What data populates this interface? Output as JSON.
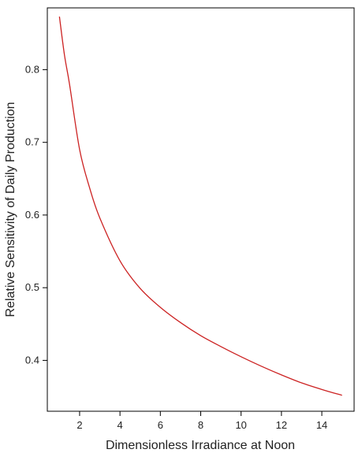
{
  "chart_data": {
    "type": "line",
    "title": "",
    "xlabel": "Dimensionless Irradiance at Noon",
    "ylabel": "Relative Sensitivity of Daily Production",
    "xlim": [
      0.4,
      15.6
    ],
    "ylim": [
      0.33,
      0.885
    ],
    "xticks": [
      2,
      4,
      6,
      8,
      10,
      12,
      14
    ],
    "yticks": [
      0.4,
      0.5,
      0.6,
      0.7,
      0.8
    ],
    "xtick_labels": [
      "2",
      "4",
      "6",
      "8",
      "10",
      "12",
      "14"
    ],
    "ytick_labels": [
      "0.4",
      "0.5",
      "0.6",
      "0.7",
      "0.8"
    ],
    "grid": false,
    "series": [
      {
        "color": "#cc2222",
        "x": [
          1,
          1.25,
          1.5,
          2,
          2.5,
          3,
          4,
          5,
          6,
          7,
          8,
          9,
          10,
          11,
          12,
          13,
          14,
          15
        ],
        "y": [
          0.873,
          0.82,
          0.78,
          0.69,
          0.637,
          0.596,
          0.537,
          0.499,
          0.473,
          0.452,
          0.434,
          0.419,
          0.405,
          0.392,
          0.38,
          0.369,
          0.36,
          0.352
        ]
      }
    ]
  }
}
